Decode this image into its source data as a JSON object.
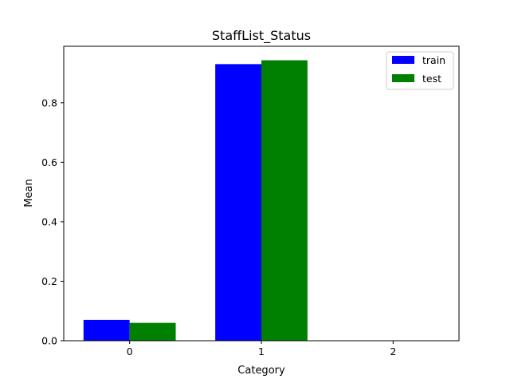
{
  "chart_data": {
    "type": "bar",
    "title": "StaffList_Status",
    "xlabel": "Category",
    "ylabel": "Mean",
    "categories": [
      "0",
      "1",
      "2"
    ],
    "series": [
      {
        "name": "train",
        "color": "#0000ff",
        "values": [
          0.07,
          0.93,
          0.0
        ]
      },
      {
        "name": "test",
        "color": "#008000",
        "values": [
          0.06,
          0.943,
          0.0
        ]
      }
    ],
    "y_ticks": [
      "0.0",
      "0.2",
      "0.4",
      "0.6",
      "0.8"
    ],
    "ylim": [
      0,
      0.99
    ],
    "grid": false,
    "legend_position": "top-right"
  }
}
